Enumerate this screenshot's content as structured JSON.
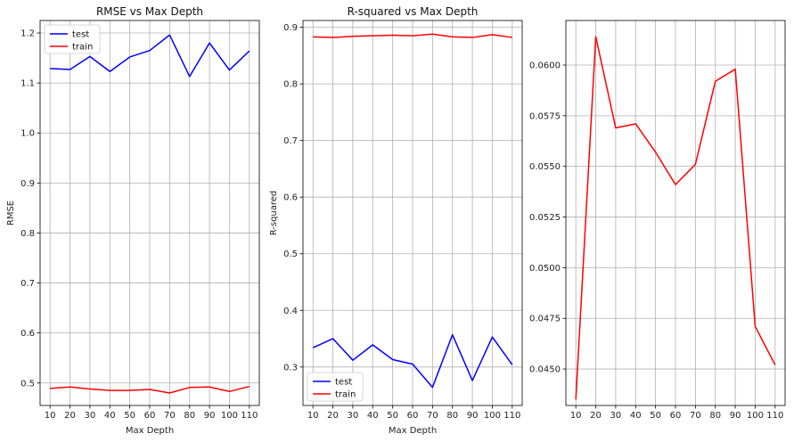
{
  "chart_data": [
    {
      "type": "line",
      "title": "RMSE vs Max Depth",
      "xlabel": "Max Depth",
      "ylabel": "RMSE",
      "x": [
        10,
        20,
        30,
        40,
        50,
        60,
        70,
        80,
        90,
        100,
        110
      ],
      "xticks": [
        "10",
        "20",
        "30",
        "40",
        "50",
        "60",
        "70",
        "80",
        "90",
        "100",
        "110"
      ],
      "xlim": [
        5,
        115
      ],
      "ylim": [
        0.455,
        1.225
      ],
      "yticks": [
        0.5,
        0.6,
        0.7,
        0.8,
        0.9,
        1.0,
        1.1,
        1.2
      ],
      "ytick_labels": [
        "0.5",
        "0.6",
        "0.7",
        "0.8",
        "0.9",
        "1.0",
        "1.1",
        "1.2"
      ],
      "grid": true,
      "legend": "top-left",
      "series": [
        {
          "name": "test",
          "color": "#0000ff",
          "values": [
            1.129,
            1.127,
            1.153,
            1.123,
            1.152,
            1.165,
            1.196,
            1.113,
            1.18,
            1.126,
            1.164
          ]
        },
        {
          "name": "train",
          "color": "#ff0000",
          "values": [
            0.489,
            0.492,
            0.488,
            0.485,
            0.485,
            0.487,
            0.48,
            0.491,
            0.492,
            0.483,
            0.493
          ]
        }
      ]
    },
    {
      "type": "line",
      "title": "R-squared vs Max Depth",
      "xlabel": "Max Depth",
      "ylabel": "R-squared",
      "x": [
        10,
        20,
        30,
        40,
        50,
        60,
        70,
        80,
        90,
        100,
        110
      ],
      "xticks": [
        "10",
        "20",
        "30",
        "40",
        "50",
        "60",
        "70",
        "80",
        "90",
        "100",
        "110"
      ],
      "xlim": [
        5,
        115
      ],
      "ylim": [
        0.232,
        0.912
      ],
      "yticks": [
        0.3,
        0.4,
        0.5,
        0.6,
        0.7,
        0.8,
        0.9
      ],
      "ytick_labels": [
        "0.3",
        "0.4",
        "0.5",
        "0.6",
        "0.7",
        "0.8",
        "0.9"
      ],
      "grid": true,
      "legend": "bottom-left",
      "series": [
        {
          "name": "test",
          "color": "#0000ff",
          "values": [
            0.334,
            0.35,
            0.312,
            0.339,
            0.313,
            0.305,
            0.264,
            0.357,
            0.276,
            0.353,
            0.304
          ]
        },
        {
          "name": "train",
          "color": "#ff0000",
          "values": [
            0.883,
            0.882,
            0.884,
            0.885,
            0.886,
            0.885,
            0.888,
            0.883,
            0.882,
            0.887,
            0.882
          ]
        }
      ]
    },
    {
      "type": "line",
      "title": "",
      "xlabel": "",
      "ylabel": "",
      "x": [
        10,
        20,
        30,
        40,
        50,
        60,
        70,
        80,
        90,
        100,
        110
      ],
      "xticks": [
        "10",
        "20",
        "30",
        "40",
        "50",
        "60",
        "70",
        "80",
        "90",
        "100",
        "110"
      ],
      "xlim": [
        5,
        115
      ],
      "ylim": [
        0.0432,
        0.0622
      ],
      "yticks": [
        0.045,
        0.0475,
        0.05,
        0.0525,
        0.055,
        0.0575,
        0.06
      ],
      "ytick_labels": [
        "0.0450",
        "0.0475",
        "0.0500",
        "0.0525",
        "0.0550",
        "0.0575",
        "0.0600"
      ],
      "grid": true,
      "legend": "none",
      "series": [
        {
          "color": "#ff0000",
          "values": [
            0.0435,
            0.0614,
            0.0569,
            0.0571,
            0.0557,
            0.0541,
            0.0551,
            0.0592,
            0.0598,
            0.0471,
            0.0452
          ]
        }
      ]
    }
  ]
}
